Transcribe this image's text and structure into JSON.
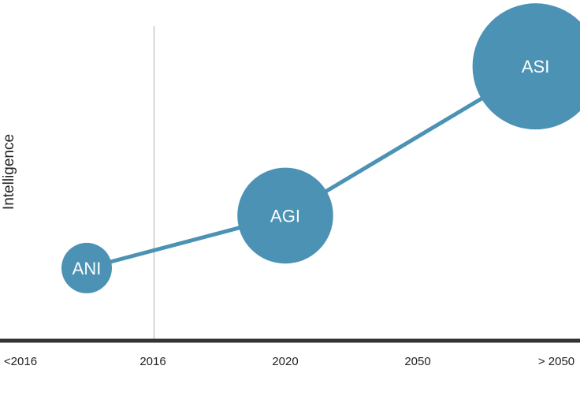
{
  "chart_data": {
    "type": "scatter",
    "ylabel": "Intelligence",
    "categories": [
      "<2016",
      "2016",
      "2020",
      "2050",
      "> 2050"
    ],
    "reference_line_at": "2016",
    "grid": false,
    "colors": {
      "bubble": "#4b92b5",
      "axis": "#333333",
      "reference_line": "#c4c4c4"
    },
    "points": [
      {
        "label": "ANI",
        "x_position": 0.5,
        "y": 1.0,
        "size": 1.0
      },
      {
        "label": "AGI",
        "x_position": 2.0,
        "y": 2.3,
        "size": 1.9
      },
      {
        "label": "ASI",
        "x_position": 3.85,
        "y": 6.0,
        "size": 2.5
      }
    ],
    "ylim": [
      -0.8,
      7.0
    ]
  }
}
